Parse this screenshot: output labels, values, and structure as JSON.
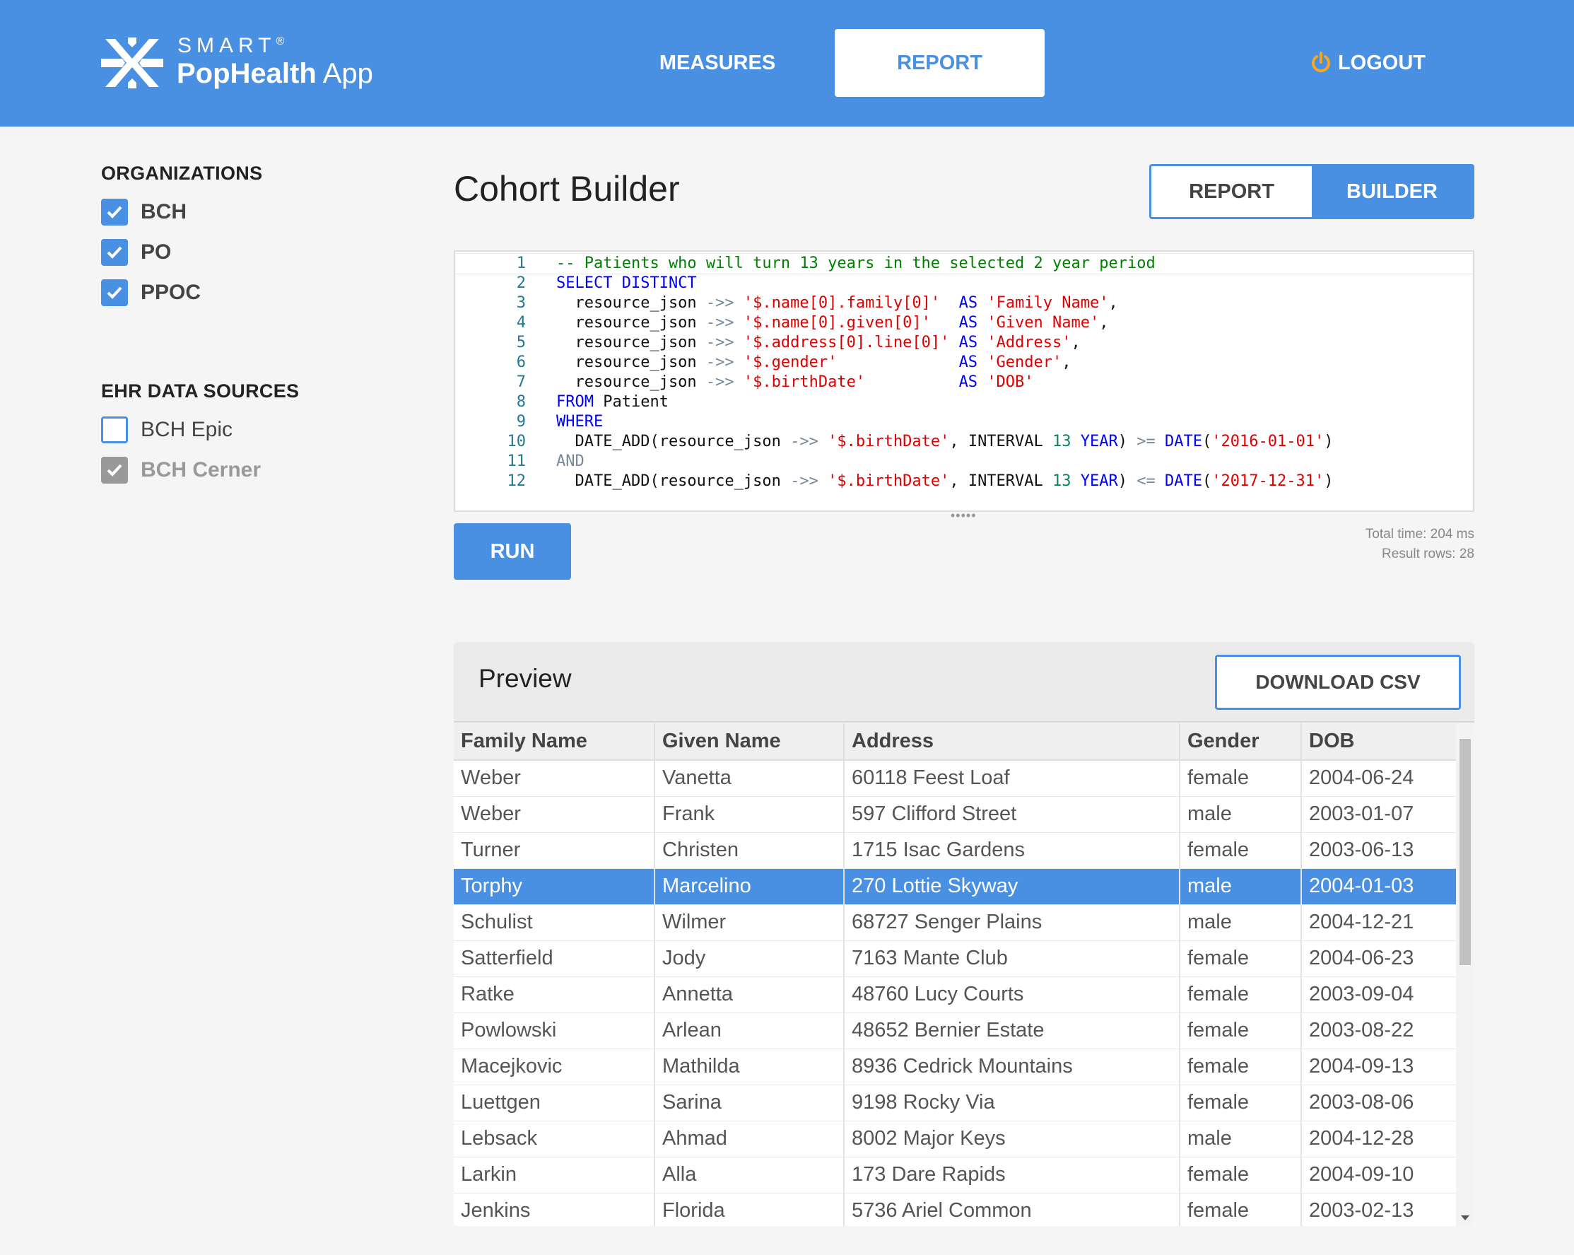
{
  "header": {
    "logo_smart": "SMART",
    "logo_reg": "®",
    "logo_pophealth": "PopHealth",
    "logo_app": "App",
    "nav_measures": "MEASURES",
    "nav_report": "REPORT",
    "logout": "LOGOUT",
    "logout_icon": "power-icon"
  },
  "sidebar": {
    "organizations_heading": "ORGANIZATIONS",
    "organizations": [
      {
        "label": "BCH",
        "checked": true
      },
      {
        "label": "PO",
        "checked": true
      },
      {
        "label": "PPOC",
        "checked": true
      }
    ],
    "ehr_heading": "EHR DATA SOURCES",
    "ehr_sources": [
      {
        "label": "BCH Epic",
        "checked": false,
        "disabled": false
      },
      {
        "label": "BCH Cerner",
        "checked": true,
        "disabled": true
      }
    ]
  },
  "main": {
    "title": "Cohort Builder",
    "toggle_report": "REPORT",
    "toggle_builder": "BUILDER",
    "run_label": "RUN",
    "total_time": "Total time: 204 ms",
    "result_rows": "Result rows: 28"
  },
  "editor": {
    "line_numbers": [
      "1",
      "2",
      "3",
      "4",
      "5",
      "6",
      "7",
      "8",
      "9",
      "10",
      "11",
      "12"
    ]
  },
  "preview": {
    "title": "Preview",
    "download_label": "DOWNLOAD CSV",
    "columns": [
      "Family Name",
      "Given Name",
      "Address",
      "Gender",
      "DOB"
    ],
    "selected_row": 3,
    "rows": [
      [
        "Weber",
        "Vanetta",
        "60118 Feest Loaf",
        "female",
        "2004-06-24"
      ],
      [
        "Weber",
        "Frank",
        "597 Clifford Street",
        "male",
        "2003-01-07"
      ],
      [
        "Turner",
        "Christen",
        "1715 Isac Gardens",
        "female",
        "2003-06-13"
      ],
      [
        "Torphy",
        "Marcelino",
        "270 Lottie Skyway",
        "male",
        "2004-01-03"
      ],
      [
        "Schulist",
        "Wilmer",
        "68727 Senger Plains",
        "male",
        "2004-12-21"
      ],
      [
        "Satterfield",
        "Jody",
        "7163 Mante Club",
        "female",
        "2004-06-23"
      ],
      [
        "Ratke",
        "Annetta",
        "48760 Lucy Courts",
        "female",
        "2003-09-04"
      ],
      [
        "Powlowski",
        "Arlean",
        "48652 Bernier Estate",
        "female",
        "2003-08-22"
      ],
      [
        "Macejkovic",
        "Mathilda",
        "8936 Cedrick Mountains",
        "female",
        "2004-09-13"
      ],
      [
        "Luettgen",
        "Sarina",
        "9198 Rocky Via",
        "female",
        "2003-08-06"
      ],
      [
        "Lebsack",
        "Ahmad",
        "8002 Major Keys",
        "male",
        "2004-12-28"
      ],
      [
        "Larkin",
        "Alla",
        "173 Dare Rapids",
        "female",
        "2004-09-10"
      ],
      [
        "Jenkins",
        "Florida",
        "5736 Ariel Common",
        "female",
        "2003-02-13"
      ]
    ]
  },
  "colors": {
    "brand": "#4a90e2",
    "power_icon": "#f5a623"
  }
}
